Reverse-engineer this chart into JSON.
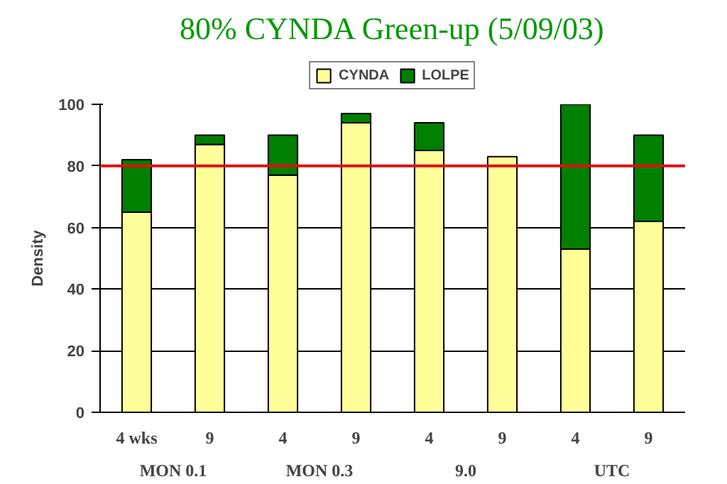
{
  "chart_data": {
    "type": "bar",
    "title": "80% CYNDA Green-up (5/09/03)",
    "ylabel": "Density",
    "categories": [
      "4 wks",
      "9",
      "4",
      "9",
      "4",
      "9",
      "4",
      "9"
    ],
    "stacked": true,
    "series": [
      {
        "name": "CYNDA",
        "color": "#ffff99",
        "values": [
          65,
          87,
          77,
          94,
          85,
          83,
          53,
          62
        ]
      },
      {
        "name": "LOLPE",
        "color": "#007f00",
        "values": [
          17,
          3,
          13,
          3,
          9,
          0,
          47,
          28
        ]
      }
    ],
    "ylim": [
      0,
      100
    ],
    "yticks": [
      0,
      20,
      40,
      60,
      80,
      100
    ],
    "grid": "y",
    "legend": "top",
    "ref_lines": [
      {
        "axis": "y",
        "value": 80,
        "color": "#e01010"
      }
    ],
    "annotations": [
      "MON 0.1",
      "MON 0.3",
      "9.0",
      "UTC"
    ]
  }
}
